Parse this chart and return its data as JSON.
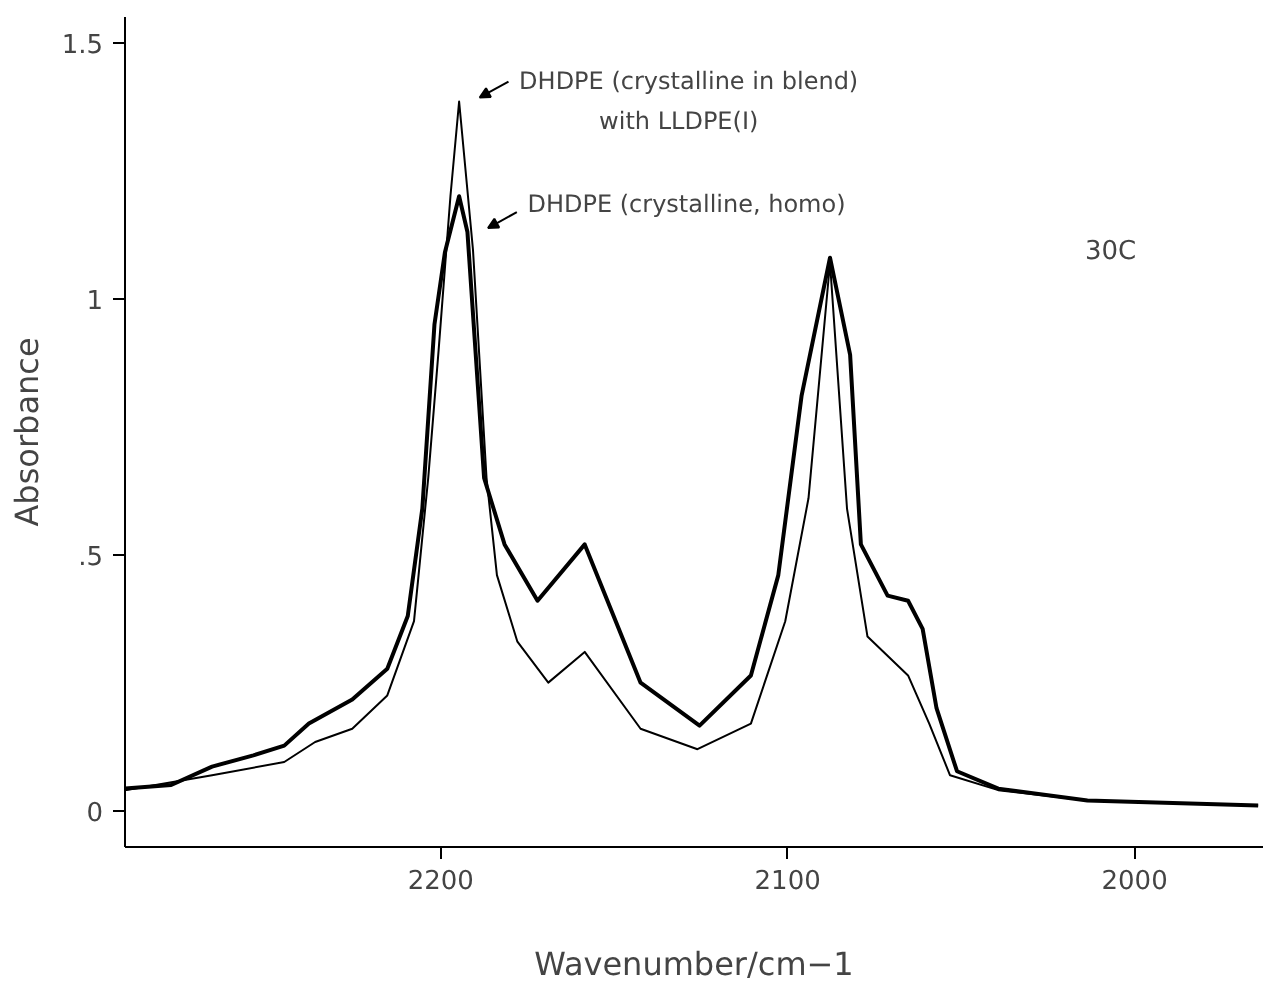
{
  "chart_data": {
    "type": "line",
    "xlabel": "Wavenumber/cm−1",
    "ylabel": "Absorbance",
    "xlim": [
      2291,
      1963
    ],
    "ylim": [
      -0.071,
      1.55
    ],
    "xticks": [
      2200,
      2100,
      2000
    ],
    "yticks": [
      0,
      {
        "value": 0.5,
        "label": ".5"
      },
      1,
      1.5
    ],
    "grid": false,
    "marker": "none",
    "line_style": "solid",
    "series": [
      {
        "color": "#000000",
        "x": [
          2291,
          2265.9,
          2245.1,
          2236.2,
          2225.5,
          2215.4,
          2207.7,
          2203.6,
          2200.6,
          2197.2,
          2194.7,
          2190.7,
          2186.8,
          2183.8,
          2177.9,
          2169,
          2158.5,
          2142.4,
          2126,
          2110.6,
          2100.7,
          2094,
          2087.8,
          2082.9,
          2077,
          2065.3,
          2059.2,
          2053.2,
          2039.3,
          2013.6,
          1964.4
        ],
        "values": [
          0.04,
          0.069,
          0.095,
          0.134,
          0.16,
          0.225,
          0.37,
          0.65,
          0.9,
          1.2,
          1.385,
          1.095,
          0.65,
          0.46,
          0.33,
          0.25,
          0.31,
          0.16,
          0.12,
          0.17,
          0.37,
          0.61,
          1.07,
          0.59,
          0.34,
          0.264,
          0.17,
          0.069,
          0.04,
          0.02,
          0.01
        ]
      },
      {
        "color": "#000000",
        "x": [
          2291,
          2277.7,
          2265.9,
          2254,
          2245.1,
          2238,
          2225.5,
          2215.4,
          2209.5,
          2205.3,
          2201.8,
          2198.8,
          2194.7,
          2192.3,
          2187.5,
          2181.6,
          2172.1,
          2158.5,
          2142.4,
          2125.4,
          2110.6,
          2102.7,
          2096,
          2087.8,
          2082,
          2078.9,
          2071.2,
          2065.3,
          2061.1,
          2057.1,
          2051.2,
          2039.3,
          2013.6,
          1964.4
        ],
        "values": [
          0.043,
          0.05,
          0.086,
          0.108,
          0.127,
          0.17,
          0.217,
          0.277,
          0.38,
          0.59,
          0.95,
          1.09,
          1.2,
          1.13,
          0.65,
          0.52,
          0.41,
          0.52,
          0.25,
          0.166,
          0.264,
          0.46,
          0.81,
          1.08,
          0.89,
          0.52,
          0.42,
          0.41,
          0.355,
          0.2,
          0.077,
          0.043,
          0.02,
          0.01
        ]
      }
    ],
    "annotations": [
      {
        "text": "DHDPE (crystalline in blend)\nwith LLDPE(I)",
        "x": 2194.7,
        "y": 1.385
      },
      {
        "text": "DHDPE (crystalline, homo)",
        "x": 2192.3,
        "y": 1.13
      },
      "30C"
    ]
  }
}
